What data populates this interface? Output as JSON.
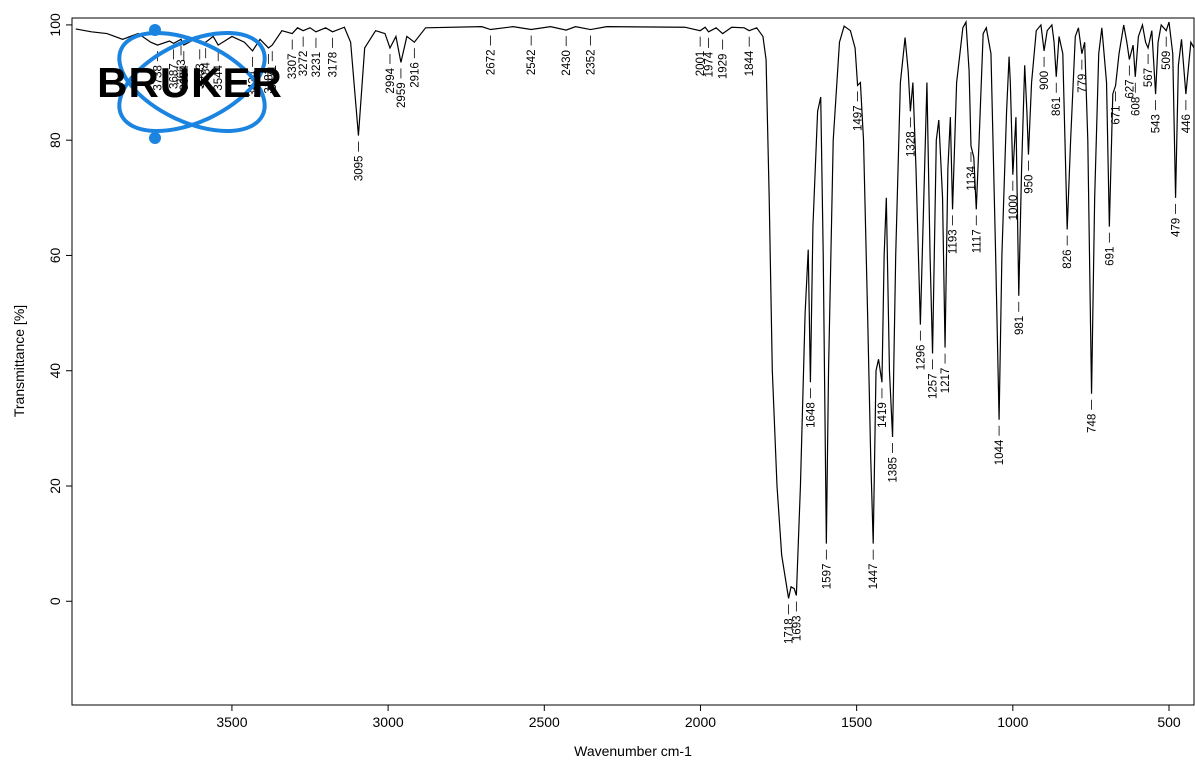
{
  "logo": {
    "text": "BRUKER"
  },
  "chart_data": {
    "type": "line",
    "xlabel": "Wavenumber cm-1",
    "ylabel": "Transmittance [%]",
    "xlim": [
      4012,
      420
    ],
    "ylim": [
      -18,
      101.2
    ],
    "x_reversed": true,
    "xticks": [
      3500,
      3000,
      2500,
      2000,
      1500,
      1000,
      500
    ],
    "yticks": [
      0,
      20,
      40,
      60,
      80,
      100
    ],
    "color": "#000000",
    "x": [
      4000,
      3950,
      3900,
      3850,
      3800,
      3760,
      3738,
      3700,
      3687,
      3663,
      3654,
      3620,
      3603,
      3584,
      3560,
      3544,
      3500,
      3460,
      3434,
      3410,
      3383,
      3371,
      3340,
      3307,
      3290,
      3272,
      3250,
      3231,
      3200,
      3178,
      3140,
      3120,
      3095,
      3075,
      3040,
      3010,
      2994,
      2975,
      2959,
      2940,
      2916,
      2880,
      2700,
      2672,
      2600,
      2542,
      2480,
      2430,
      2400,
      2352,
      2300,
      2050,
      2001,
      1985,
      1974,
      1950,
      1929,
      1900,
      1860,
      1844,
      1820,
      1800,
      1790,
      1780,
      1770,
      1755,
      1740,
      1718,
      1710,
      1700,
      1693,
      1680,
      1665,
      1655,
      1648,
      1640,
      1625,
      1615,
      1607,
      1597,
      1590,
      1575,
      1555,
      1540,
      1520,
      1505,
      1497,
      1488,
      1478,
      1465,
      1455,
      1447,
      1438,
      1430,
      1419,
      1412,
      1405,
      1395,
      1385,
      1375,
      1360,
      1345,
      1335,
      1328,
      1320,
      1310,
      1296,
      1285,
      1275,
      1265,
      1257,
      1245,
      1237,
      1225,
      1217,
      1208,
      1200,
      1193,
      1180,
      1160,
      1150,
      1140,
      1134,
      1125,
      1117,
      1108,
      1095,
      1085,
      1070,
      1055,
      1044,
      1035,
      1020,
      1012,
      1008,
      1000,
      990,
      981,
      972,
      962,
      955,
      950,
      940,
      925,
      910,
      900,
      890,
      875,
      868,
      861,
      852,
      840,
      826,
      815,
      800,
      790,
      779,
      770,
      760,
      748,
      738,
      725,
      715,
      700,
      691,
      680,
      671,
      660,
      645,
      635,
      627,
      615,
      608,
      598,
      585,
      575,
      567,
      555,
      543,
      535,
      525,
      509,
      500,
      488,
      479,
      470,
      460,
      446,
      430,
      420
    ],
    "values": [
      99.3,
      98.8,
      98.5,
      97.5,
      98.5,
      97,
      96.5,
      97.2,
      96.8,
      97.5,
      96.5,
      97.5,
      96.8,
      97,
      98,
      96.5,
      98,
      97,
      95.5,
      97.5,
      96,
      96.5,
      99,
      98.5,
      99.5,
      99,
      99.5,
      98.8,
      99.5,
      98.8,
      99.6,
      97,
      80.8,
      96,
      99,
      98.5,
      96,
      98,
      93.5,
      98,
      97,
      99.5,
      99.7,
      99.2,
      99.7,
      99.2,
      99.7,
      99.1,
      99.7,
      99.2,
      99.7,
      99.6,
      99,
      99.6,
      98.8,
      99.5,
      98.5,
      99.6,
      99.5,
      99,
      99.5,
      98,
      94,
      70,
      40,
      20,
      8,
      0.5,
      2.5,
      2.2,
      1,
      20,
      50,
      61,
      38,
      65,
      85,
      87.5,
      60,
      10,
      40,
      80,
      97,
      99.8,
      99,
      96,
      89.5,
      90,
      80,
      50,
      25,
      10,
      40,
      42,
      38,
      60,
      70,
      40,
      28.5,
      60,
      90,
      97.8,
      92,
      85,
      90,
      75,
      48,
      70,
      90,
      60,
      43,
      80,
      83.5,
      70,
      44,
      75,
      84,
      68,
      90,
      99.5,
      100.5,
      92,
      79,
      77,
      68,
      80,
      98.5,
      99.5,
      95,
      60,
      31.5,
      60,
      85,
      94.5,
      90,
      74,
      84,
      53,
      75,
      93,
      85,
      77.5,
      90,
      99,
      100,
      95.5,
      99,
      100,
      97,
      91,
      98,
      95,
      64.5,
      80,
      98,
      99.5,
      95,
      97,
      80,
      36,
      70,
      95,
      99.5,
      90,
      65,
      88,
      89.5,
      95,
      100,
      97,
      94,
      96.5,
      91,
      98,
      100,
      97,
      96,
      99,
      88,
      97,
      100,
      99,
      100.5,
      95,
      70,
      93,
      97.5,
      88,
      97,
      96
    ],
    "peaks": [
      3738,
      3687,
      3663,
      3654,
      3603,
      3584,
      3544,
      3434,
      3383,
      3371,
      3307,
      3272,
      3231,
      3178,
      3095,
      2994,
      2959,
      2916,
      2672,
      2542,
      2430,
      2352,
      2001,
      1974,
      1929,
      1844,
      1718,
      1693,
      1648,
      1597,
      1497,
      1447,
      1419,
      1385,
      1328,
      1296,
      1257,
      1217,
      1193,
      1134,
      1117,
      1044,
      1000,
      981,
      950,
      900,
      861,
      826,
      779,
      748,
      691,
      671,
      627,
      608,
      567,
      543,
      509,
      479,
      446
    ]
  }
}
